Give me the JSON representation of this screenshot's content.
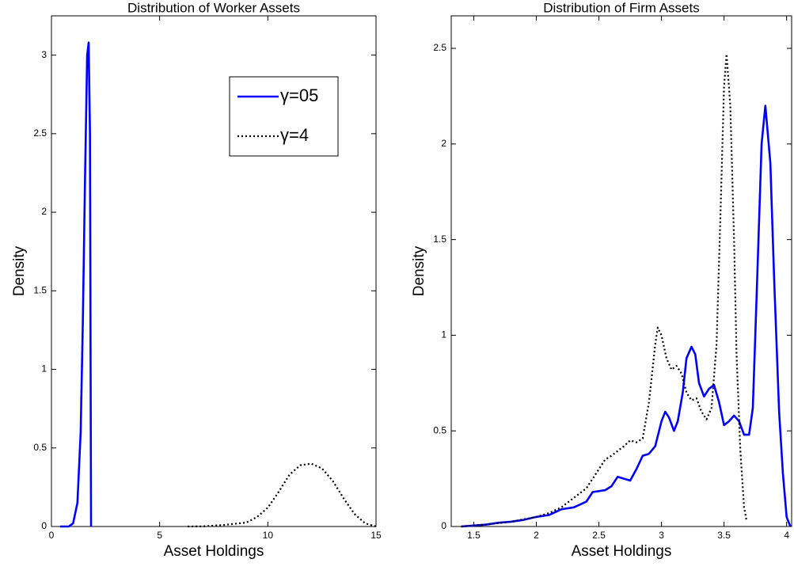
{
  "chart_data": [
    {
      "type": "line",
      "title": "Distribution of Worker Assets",
      "xlabel": "Asset Holdings",
      "ylabel": "Density",
      "xlim": [
        0,
        15
      ],
      "xticks": [
        0,
        5,
        10,
        15
      ],
      "ylim": [
        0,
        3.25
      ],
      "yticks": [
        0,
        0.5,
        1,
        1.5,
        2,
        2.5,
        3
      ],
      "legend": "northeast",
      "series": [
        {
          "name": "γ=05",
          "color": "#0000ff",
          "style": "solid",
          "x": [
            0.4,
            0.8,
            1.0,
            1.2,
            1.35,
            1.45,
            1.55,
            1.65,
            1.72,
            1.78,
            1.82,
            1.83
          ],
          "values": [
            0,
            0,
            0.02,
            0.15,
            0.6,
            1.3,
            2.2,
            3.0,
            3.08,
            2.5,
            0.5,
            0
          ]
        },
        {
          "name": "γ=4",
          "color": "#000000",
          "style": "dotted",
          "x": [
            6.3,
            7,
            8,
            9,
            9.5,
            10,
            10.5,
            11,
            11.5,
            12,
            12.5,
            13,
            13.5,
            14,
            14.5,
            15
          ],
          "values": [
            0,
            0.001,
            0.01,
            0.025,
            0.06,
            0.12,
            0.22,
            0.33,
            0.39,
            0.4,
            0.37,
            0.29,
            0.18,
            0.08,
            0.02,
            0
          ]
        }
      ]
    },
    {
      "type": "line",
      "title": "Distribution of Firm Assets",
      "xlabel": "Asset Holdings",
      "ylabel": "Density",
      "xlim": [
        1.32,
        4.04
      ],
      "xticks": [
        1.5,
        2,
        2.5,
        3,
        3.5,
        4
      ],
      "ylim": [
        0,
        2.67
      ],
      "yticks": [
        0,
        0.5,
        1,
        1.5,
        2,
        2.5
      ],
      "series": [
        {
          "color": "#0000ff",
          "style": "solid",
          "x": [
            1.4,
            1.5,
            1.6,
            1.7,
            1.8,
            1.9,
            2.0,
            2.1,
            2.2,
            2.3,
            2.4,
            2.45,
            2.55,
            2.6,
            2.65,
            2.7,
            2.75,
            2.8,
            2.85,
            2.9,
            2.95,
            3.0,
            3.03,
            3.06,
            3.1,
            3.13,
            3.17,
            3.2,
            3.24,
            3.27,
            3.3,
            3.34,
            3.38,
            3.42,
            3.46,
            3.5,
            3.54,
            3.58,
            3.62,
            3.66,
            3.7,
            3.73,
            3.76,
            3.8,
            3.83,
            3.87,
            3.9,
            3.94,
            3.97,
            4.0,
            4.03
          ],
          "values": [
            0,
            0.005,
            0.01,
            0.02,
            0.025,
            0.035,
            0.05,
            0.06,
            0.09,
            0.1,
            0.13,
            0.18,
            0.19,
            0.21,
            0.26,
            0.25,
            0.24,
            0.3,
            0.37,
            0.38,
            0.42,
            0.55,
            0.6,
            0.57,
            0.5,
            0.55,
            0.7,
            0.88,
            0.94,
            0.9,
            0.75,
            0.68,
            0.72,
            0.74,
            0.65,
            0.53,
            0.55,
            0.58,
            0.55,
            0.48,
            0.48,
            0.62,
            1.2,
            2.0,
            2.2,
            1.9,
            1.3,
            0.6,
            0.28,
            0.05,
            0
          ]
        },
        {
          "color": "#000000",
          "style": "dotted",
          "x": [
            1.4,
            1.6,
            1.8,
            2.0,
            2.1,
            2.2,
            2.3,
            2.4,
            2.5,
            2.55,
            2.6,
            2.7,
            2.75,
            2.8,
            2.85,
            2.9,
            2.95,
            2.97,
            3.0,
            3.04,
            3.08,
            3.12,
            3.16,
            3.2,
            3.24,
            3.28,
            3.32,
            3.36,
            3.4,
            3.44,
            3.47,
            3.5,
            3.52,
            3.55,
            3.58,
            3.6,
            3.63,
            3.66,
            3.68
          ],
          "values": [
            0,
            0.01,
            0.025,
            0.05,
            0.07,
            0.1,
            0.15,
            0.2,
            0.3,
            0.35,
            0.37,
            0.42,
            0.45,
            0.44,
            0.46,
            0.65,
            0.95,
            1.04,
            1.0,
            0.88,
            0.82,
            0.84,
            0.8,
            0.7,
            0.66,
            0.67,
            0.6,
            0.56,
            0.62,
            0.95,
            1.6,
            2.3,
            2.47,
            2.2,
            1.5,
            0.9,
            0.4,
            0.1,
            0.03
          ]
        }
      ]
    }
  ]
}
